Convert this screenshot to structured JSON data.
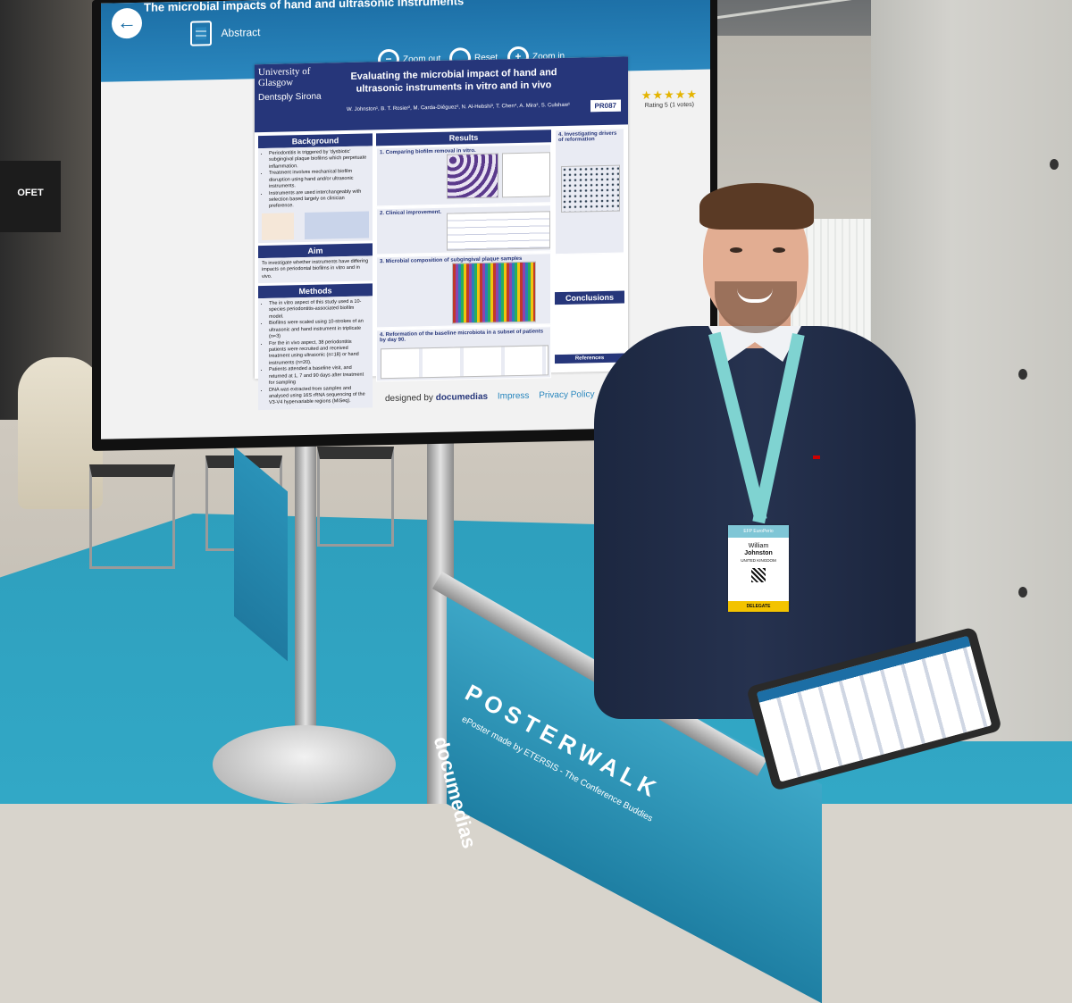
{
  "monitor": {
    "title": "The microbial impacts of hand and ultrasonic instruments",
    "back_label": "←",
    "abstract_label": "Abstract",
    "zoom_out_label": "Zoom out",
    "reset_label": "Reset",
    "zoom_in_label": "Zoom in",
    "rating_stars": "★★★★★",
    "rating_text": "Rating 5 (1 votes)",
    "designed_by_prefix": "designed by",
    "designed_by_brand": "documedias",
    "impress_link": "Impress",
    "privacy_link": "Privacy Policy",
    "accent_color": "#2a87be"
  },
  "poster": {
    "logo_university": "University of Glasgow",
    "logo_company": "Dentsply Sirona",
    "title_line1": "Evaluating the microbial impact of hand and",
    "title_line2": "ultrasonic instruments in vitro and in vivo",
    "authors": "W. Johnston¹, B. T. Rosier², M. Carda-Diéguez², N. Al-Hebshi³, T. Chen⁴, A. Mira², S. Culshaw¹",
    "code": "PR087",
    "background_head": "Background",
    "background_items": [
      "Periodontitis is triggered by 'dysbiotic' subgingival plaque biofilms which perpetuate inflammation.",
      "Treatment involves mechanical biofilm disruption using hand and/or ultrasonic instruments.",
      "Instruments are used interchangeably with selection based largely on clinician preference."
    ],
    "aim_head": "Aim",
    "aim_text": "To investigate whether instruments have differing impacts on periodontal biofilms in vitro and in vivo.",
    "methods_head": "Methods",
    "methods_items": [
      "The in vitro aspect of this study used a 10-species periodontitis-associated biofilm model.",
      "Biofilms were scaled using 10-strokes of an ultrasonic and hand instrument in triplicate (n=3)",
      "For the in vivo aspect, 38 periodontitis patients were recruited and received treatment using ultrasonic (n=18) or hand instruments (n=20).",
      "Patients attended a baseline visit, and returned at 1, 7 and 90 days after treatment for sampling",
      "DNA was extracted from samples and analysed using 16S rRNA sequencing of the V3-V4 hypervariable regions (MiSeq)."
    ],
    "results_head": "Results",
    "results_sections": [
      "1. Comparing biofilm removal in vitro.",
      "2. Clinical improvement.",
      "3. Microbial composition of subgingival plaque samples",
      "4. Reformation of the baseline microbiota in a subset of patients by day 90."
    ],
    "drivers_head": "4. Investigating drivers of reformation",
    "conclusions_head": "Conclusions",
    "references_head": "References"
  },
  "scene": {
    "banner_brand": "POSTERWALK",
    "banner_sub": "ePoster made by ETERSIS - The Conference Buddies",
    "kiosk_brand": "documedias",
    "sign_text": "OFET"
  },
  "badge": {
    "first_name": "William",
    "surname": "Johnston",
    "country": "UNITED KINGDOM",
    "role": "DELEGATE",
    "event": "EFP EuroPerio"
  }
}
